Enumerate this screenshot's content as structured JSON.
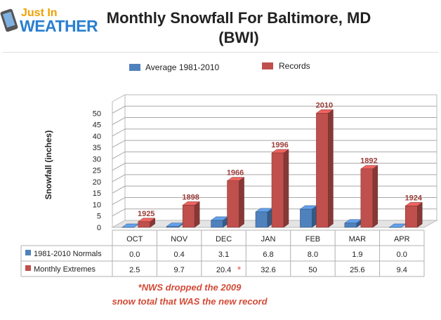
{
  "logo": {
    "line1": "Just In",
    "line2": "WEATHER"
  },
  "title": {
    "line1": "Monthly Snowfall For Baltimore, MD",
    "line2": "(BWI)"
  },
  "note": {
    "line1": "*NWS dropped the 2009",
    "line2": "snow total that WAS the new record"
  },
  "chart_data": {
    "type": "bar",
    "title": "Monthly Snowfall For Baltimore, MD (BWI)",
    "ylabel": "Snowfall (inches)",
    "xlabel": "",
    "categories": [
      "OCT",
      "NOV",
      "DEC",
      "JAN",
      "FEB",
      "MAR",
      "APR"
    ],
    "ylim": [
      0,
      55
    ],
    "yticks": [
      0,
      5,
      10,
      15,
      20,
      25,
      30,
      35,
      40,
      45,
      50
    ],
    "grid": true,
    "legend": "top",
    "series": [
      {
        "name": "Average 1981-2010",
        "table_label": "1981-2010 Normals",
        "color": "#4f81bd",
        "values": [
          0.0,
          0.4,
          3.1,
          6.8,
          8.0,
          1.9,
          0.0
        ],
        "labels": [
          "0.0",
          "0.4",
          "3.1",
          "6.8",
          "8.0",
          "1.9",
          "0.0"
        ]
      },
      {
        "name": "Records",
        "table_label": "Monthly Extremes",
        "color": "#c0504d",
        "values": [
          2.5,
          9.7,
          20.4,
          32.6,
          50,
          25.6,
          9.4
        ],
        "labels": [
          "2.5",
          "9.7",
          "20.4",
          "32.6",
          "50",
          "25.6",
          "9.4"
        ],
        "years": [
          "1925",
          "1898",
          "1966",
          "1996",
          "2010",
          "1892",
          "1924"
        ]
      }
    ],
    "annotation_mark": "*",
    "annotation_category": "DEC"
  }
}
